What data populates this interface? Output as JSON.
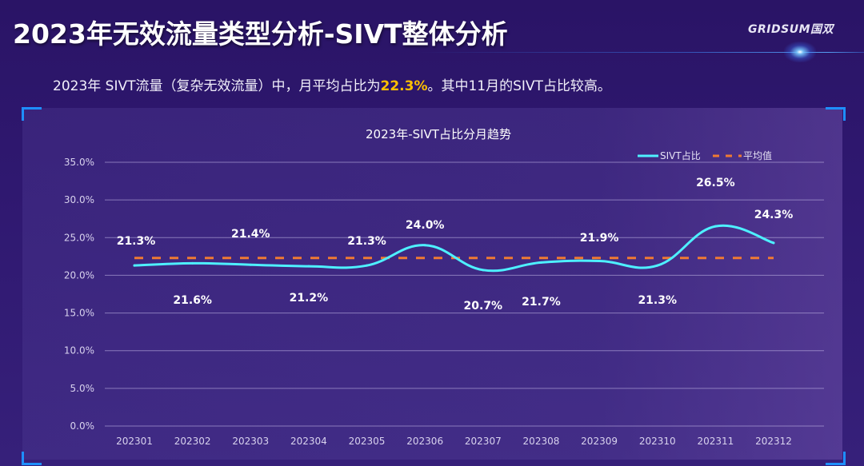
{
  "header": {
    "title": "2023年无效流量类型分析-SIVT整体分析",
    "logo": "GRIDSUM国双"
  },
  "summary": {
    "prefix": "2023年 SIVT流量（复杂无效流量）中，月平均占比为",
    "highlight": "22.3%",
    "suffix": "。其中11月的SIVT占比较高。"
  },
  "colors": {
    "line": "#4ef0ff",
    "average": "#ef7a33",
    "highlight": "#ffc000",
    "corner_accent": "#1e8fff"
  },
  "chart_data": {
    "type": "line",
    "title": "2023年-SIVT占比分月趋势",
    "xlabel": "",
    "ylabel": "",
    "categories": [
      "202301",
      "202302",
      "202303",
      "202304",
      "202305",
      "202306",
      "202307",
      "202308",
      "202309",
      "202310",
      "202311",
      "202312"
    ],
    "series": [
      {
        "name": "SIVT占比",
        "style": "smooth-solid",
        "values": [
          21.3,
          21.6,
          21.4,
          21.2,
          21.3,
          24.0,
          20.7,
          21.7,
          21.9,
          21.3,
          26.5,
          24.3
        ],
        "labels": [
          "21.3%",
          "21.6%",
          "21.4%",
          "21.2%",
          "21.3%",
          "24.0%",
          "20.7%",
          "21.7%",
          "21.9%",
          "21.3%",
          "26.5%",
          "24.3%"
        ],
        "label_positions": [
          "above",
          "below",
          "above",
          "below",
          "above",
          "above",
          "below",
          "below",
          "above",
          "below",
          "above",
          "above"
        ]
      },
      {
        "name": "平均值",
        "style": "dashed",
        "values": [
          22.3,
          22.3,
          22.3,
          22.3,
          22.3,
          22.3,
          22.3,
          22.3,
          22.3,
          22.3,
          22.3,
          22.3
        ]
      }
    ],
    "ylim": [
      0,
      35
    ],
    "yticks": [
      0,
      5,
      10,
      15,
      20,
      25,
      30,
      35
    ],
    "ytick_labels": [
      "0.0%",
      "5.0%",
      "10.0%",
      "15.0%",
      "20.0%",
      "25.0%",
      "30.0%",
      "35.0%"
    ],
    "grid": true,
    "legend": {
      "position": "top-right",
      "entries": [
        "SIVT占比",
        "平均值"
      ]
    }
  }
}
